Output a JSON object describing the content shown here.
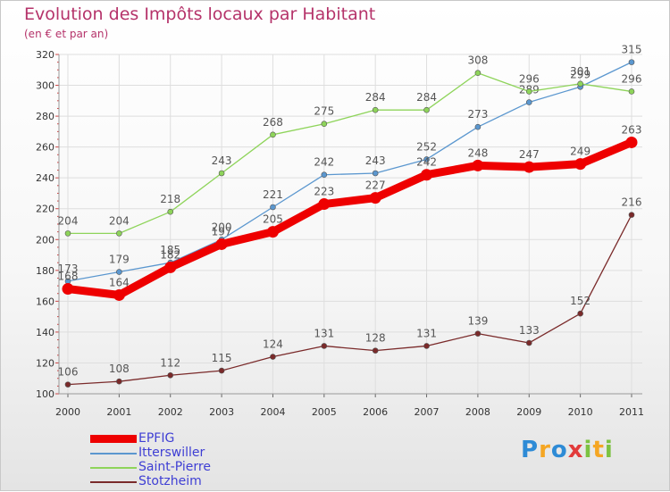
{
  "header": {
    "title": "Evolution des Impôts locaux par Habitant",
    "subtitle": "(en € et par an)"
  },
  "brand": {
    "letters": [
      {
        "char": "P",
        "color": "#2e8bd6"
      },
      {
        "char": "r",
        "color": "#f5a623"
      },
      {
        "char": "o",
        "color": "#2e8bd6"
      },
      {
        "char": "x",
        "color": "#e23b3b"
      },
      {
        "char": "i",
        "color": "#7cc242"
      },
      {
        "char": "t",
        "color": "#f5a623"
      },
      {
        "char": "i",
        "color": "#7cc242"
      }
    ]
  },
  "chart_data": {
    "type": "line",
    "x": [
      "2000",
      "2001",
      "2002",
      "2003",
      "2004",
      "2005",
      "2006",
      "2007",
      "2008",
      "2009",
      "2010",
      "2011"
    ],
    "ylim": [
      100,
      320
    ],
    "yticks": [
      100,
      120,
      140,
      160,
      180,
      200,
      220,
      240,
      260,
      280,
      300,
      320
    ],
    "grid": true,
    "legend_position": "bottom-left",
    "series": [
      {
        "name": "EPFIG",
        "color": "#ee0000",
        "emphasis": true,
        "values": [
          168,
          164,
          182,
          197,
          205,
          223,
          227,
          242,
          248,
          247,
          249,
          263
        ]
      },
      {
        "name": "Itterswiller",
        "color": "#5b97cf",
        "emphasis": false,
        "values": [
          173,
          179,
          185,
          200,
          221,
          242,
          243,
          252,
          273,
          289,
          299,
          315
        ]
      },
      {
        "name": "Saint-Pierre",
        "color": "#8ed45a",
        "emphasis": false,
        "values": [
          204,
          204,
          218,
          243,
          268,
          275,
          284,
          284,
          308,
          296,
          301,
          296
        ]
      },
      {
        "name": "Stotzheim",
        "color": "#7a2a2a",
        "emphasis": false,
        "values": [
          106,
          108,
          112,
          115,
          124,
          131,
          128,
          131,
          139,
          133,
          152,
          216
        ]
      }
    ]
  }
}
